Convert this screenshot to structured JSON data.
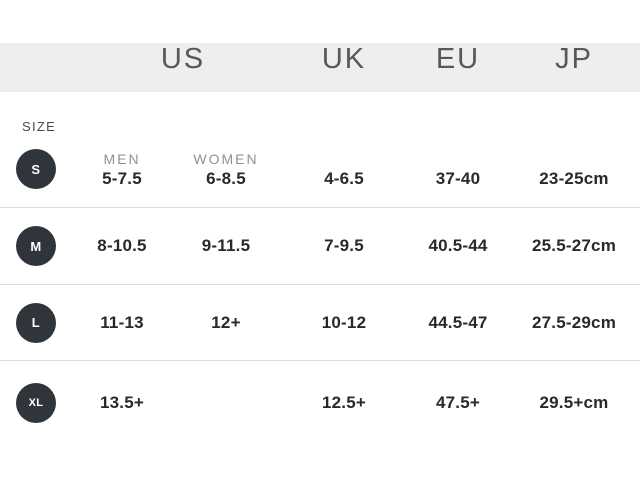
{
  "header": {
    "columns": [
      {
        "id": "us",
        "label": "US"
      },
      {
        "id": "uk",
        "label": "UK"
      },
      {
        "id": "eu",
        "label": "EU"
      },
      {
        "id": "jp",
        "label": "JP"
      }
    ]
  },
  "size_label": "SIZE",
  "subheaders": {
    "men": "MEN",
    "women": "WOMEN"
  },
  "rows": [
    {
      "size": "S",
      "us_men": "5-7.5",
      "us_women": "6-8.5",
      "uk": "4-6.5",
      "eu": "37-40",
      "jp": "23-25cm"
    },
    {
      "size": "M",
      "us_men": "8-10.5",
      "us_women": "9-11.5",
      "uk": "7-9.5",
      "eu": "40.5-44",
      "jp": "25.5-27cm"
    },
    {
      "size": "L",
      "us_men": "11-13",
      "us_women": "12+",
      "uk": "10-12",
      "eu": "44.5-47",
      "jp": "27.5-29cm"
    },
    {
      "size": "XL",
      "us_men": "13.5+",
      "us_women": "",
      "uk": "12.5+",
      "eu": "47.5+",
      "jp": "29.5+cm"
    }
  ],
  "colors": {
    "page_bg": "#ffffff",
    "header_strip_bg": "#eeeeee",
    "header_text": "#55585c",
    "size_badge_bg": "#2f353a",
    "size_badge_text": "#ffffff",
    "sub_label_text": "#8f9294",
    "value_text": "#27292b",
    "separator": "#dedede"
  },
  "chart_data": {
    "type": "table",
    "title": "SIZE",
    "columns": [
      "SIZE",
      "US MEN",
      "US WOMEN",
      "UK",
      "EU",
      "JP"
    ],
    "rows": [
      [
        "S",
        "5-7.5",
        "6-8.5",
        "4-6.5",
        "37-40",
        "23-25cm"
      ],
      [
        "M",
        "8-10.5",
        "9-11.5",
        "7-9.5",
        "40.5-44",
        "25.5-27cm"
      ],
      [
        "L",
        "11-13",
        "12+",
        "10-12",
        "44.5-47",
        "27.5-29cm"
      ],
      [
        "XL",
        "13.5+",
        "",
        "12.5+",
        "47.5+",
        "29.5+cm"
      ]
    ]
  }
}
